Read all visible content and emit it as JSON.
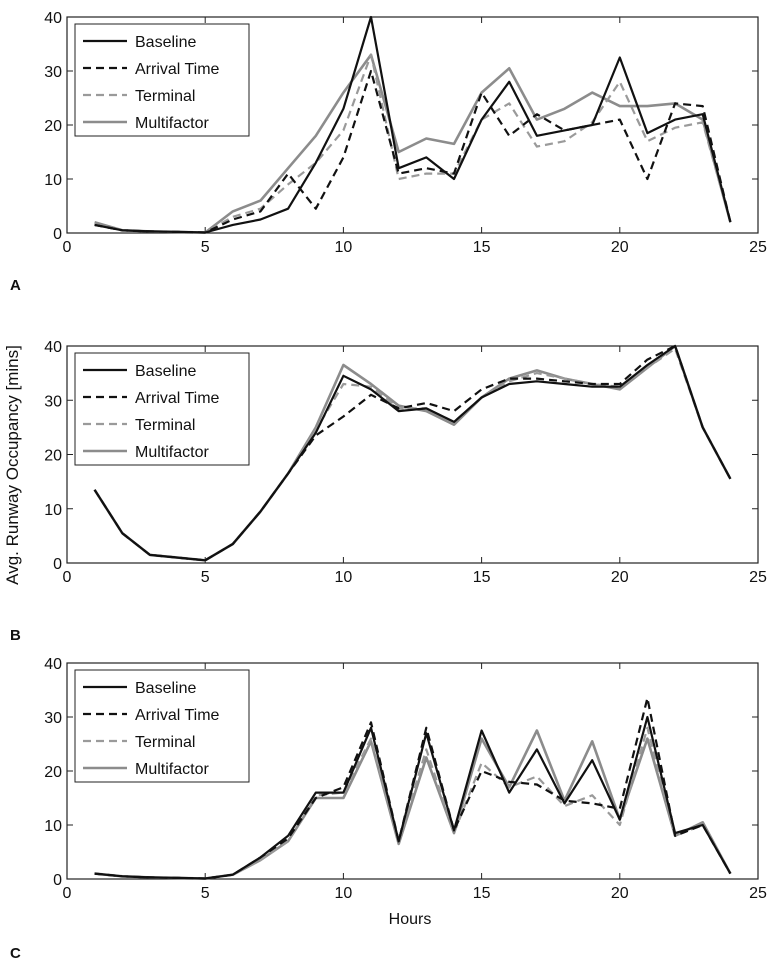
{
  "figure": {
    "ylabel": "Avg. Runway Occupancy [mins]",
    "xlabel": "Hours",
    "panel_labels": [
      "A",
      "B",
      "C"
    ]
  },
  "chart_data": [
    {
      "type": "line",
      "panel": "A",
      "xlim": [
        0,
        25
      ],
      "ylim": [
        0,
        40
      ],
      "xticks": [
        0,
        5,
        10,
        15,
        20,
        25
      ],
      "yticks": [
        0,
        10,
        20,
        30,
        40
      ],
      "grid": false,
      "legend_position": "top-left",
      "x": [
        1,
        2,
        3,
        4,
        5,
        6,
        7,
        8,
        9,
        10,
        11,
        12,
        13,
        14,
        15,
        16,
        17,
        18,
        19,
        20,
        21,
        22,
        23,
        24
      ],
      "series": [
        {
          "name": "Baseline",
          "color": "#111111",
          "dash": "solid",
          "values": [
            1.5,
            0.5,
            0.3,
            0.2,
            0.1,
            1.5,
            2.5,
            4.5,
            13,
            23,
            40,
            12,
            14,
            10,
            21,
            28,
            18,
            19,
            20,
            32.5,
            18.5,
            21,
            22,
            2
          ]
        },
        {
          "name": "Arrival Time",
          "color": "#111111",
          "dash": "dashed",
          "values": [
            1.5,
            0.5,
            0.3,
            0.2,
            0.1,
            2.5,
            4,
            11,
            4.5,
            14,
            30,
            11,
            12,
            11,
            26,
            18,
            22,
            19,
            20,
            21,
            10,
            24,
            23.5,
            2
          ]
        },
        {
          "name": "Terminal",
          "color": "#9a9a9a",
          "dash": "dashed",
          "values": [
            1.5,
            0.5,
            0.3,
            0.2,
            0.1,
            3,
            4.5,
            9,
            13,
            19,
            33,
            10,
            11,
            11,
            21,
            24,
            16,
            17,
            20.5,
            28,
            17,
            19.5,
            20.5,
            2
          ]
        },
        {
          "name": "Multifactor",
          "color": "#8c8c8c",
          "dash": "solid",
          "values": [
            2,
            0.5,
            0.3,
            0.2,
            0.1,
            4,
            6,
            12,
            18,
            26,
            33,
            15,
            17.5,
            16.5,
            26,
            30.5,
            21,
            23,
            26,
            23.5,
            23.5,
            24,
            21,
            2
          ]
        }
      ]
    },
    {
      "type": "line",
      "panel": "B",
      "xlim": [
        0,
        25
      ],
      "ylim": [
        0,
        40
      ],
      "xticks": [
        0,
        5,
        10,
        15,
        20,
        25
      ],
      "yticks": [
        0,
        10,
        20,
        30,
        40
      ],
      "grid": false,
      "legend_position": "top-left",
      "x": [
        1,
        2,
        3,
        4,
        5,
        6,
        7,
        8,
        9,
        10,
        11,
        12,
        13,
        14,
        15,
        16,
        17,
        18,
        19,
        20,
        21,
        22,
        23,
        24
      ],
      "series": [
        {
          "name": "Baseline",
          "color": "#111111",
          "dash": "solid",
          "values": [
            13.5,
            5.5,
            1.5,
            1,
            0.5,
            3.5,
            9.5,
            16.5,
            24,
            34.5,
            32,
            28,
            28.5,
            26,
            30.5,
            33,
            33.5,
            33,
            32.5,
            32.5,
            36.5,
            40,
            25,
            15.5
          ]
        },
        {
          "name": "Arrival Time",
          "color": "#111111",
          "dash": "dashed",
          "values": [
            13.5,
            5.5,
            1.5,
            1,
            0.5,
            3.5,
            9.5,
            16.5,
            23.5,
            27,
            31,
            28.5,
            29.5,
            28,
            32,
            34,
            34,
            33.5,
            33,
            33,
            37.5,
            40,
            25,
            15.5
          ]
        },
        {
          "name": "Terminal",
          "color": "#9a9a9a",
          "dash": "dashed",
          "values": [
            13.5,
            5.5,
            1.5,
            1,
            0.5,
            3.5,
            9.5,
            16.5,
            24.5,
            33,
            32.5,
            28.5,
            28.5,
            26,
            30.5,
            33.5,
            35,
            34,
            33,
            32.5,
            36,
            39.5,
            25,
            15.5
          ]
        },
        {
          "name": "Multifactor",
          "color": "#8c8c8c",
          "dash": "solid",
          "values": [
            13.5,
            5.5,
            1.5,
            1,
            0.5,
            3.5,
            9.5,
            16.5,
            25,
            36.5,
            33,
            29,
            28,
            25.5,
            30.5,
            34,
            35.5,
            34,
            33,
            32,
            36,
            40,
            25,
            15.5
          ]
        }
      ]
    },
    {
      "type": "line",
      "panel": "C",
      "xlim": [
        0,
        25
      ],
      "ylim": [
        0,
        40
      ],
      "xticks": [
        0,
        5,
        10,
        15,
        20,
        25
      ],
      "yticks": [
        0,
        10,
        20,
        30,
        40
      ],
      "grid": false,
      "legend_position": "top-left",
      "x": [
        1,
        2,
        3,
        4,
        5,
        6,
        7,
        8,
        9,
        10,
        11,
        12,
        13,
        14,
        15,
        16,
        17,
        18,
        19,
        20,
        21,
        22,
        23,
        24
      ],
      "series": [
        {
          "name": "Baseline",
          "color": "#111111",
          "dash": "solid",
          "values": [
            1,
            0.5,
            0.3,
            0.2,
            0.1,
            0.8,
            4,
            8,
            16,
            16,
            28,
            7,
            27,
            9,
            27.5,
            16,
            24,
            14,
            22,
            11,
            30,
            8.5,
            10,
            1
          ]
        },
        {
          "name": "Arrival Time",
          "color": "#111111",
          "dash": "dashed",
          "values": [
            1,
            0.5,
            0.3,
            0.2,
            0.1,
            0.8,
            4,
            7.5,
            15,
            17,
            29,
            7,
            28,
            9,
            20,
            18,
            17.5,
            14.5,
            14,
            13,
            33.5,
            8,
            10,
            1
          ]
        },
        {
          "name": "Terminal",
          "color": "#9a9a9a",
          "dash": "dashed",
          "values": [
            1,
            0.5,
            0.3,
            0.2,
            0.1,
            0.8,
            3.5,
            7,
            15.5,
            16,
            26,
            7,
            24,
            8.5,
            21.5,
            17,
            19,
            13.5,
            15.5,
            10,
            28,
            8,
            10,
            1
          ]
        },
        {
          "name": "Multifactor",
          "color": "#8c8c8c",
          "dash": "solid",
          "values": [
            1,
            0.5,
            0.3,
            0.2,
            0.1,
            0.8,
            3.5,
            7,
            15,
            15,
            25.5,
            6.5,
            22.5,
            8.5,
            26,
            17,
            27.5,
            14.5,
            25.5,
            11,
            26,
            8,
            10.5,
            1
          ]
        }
      ]
    }
  ]
}
